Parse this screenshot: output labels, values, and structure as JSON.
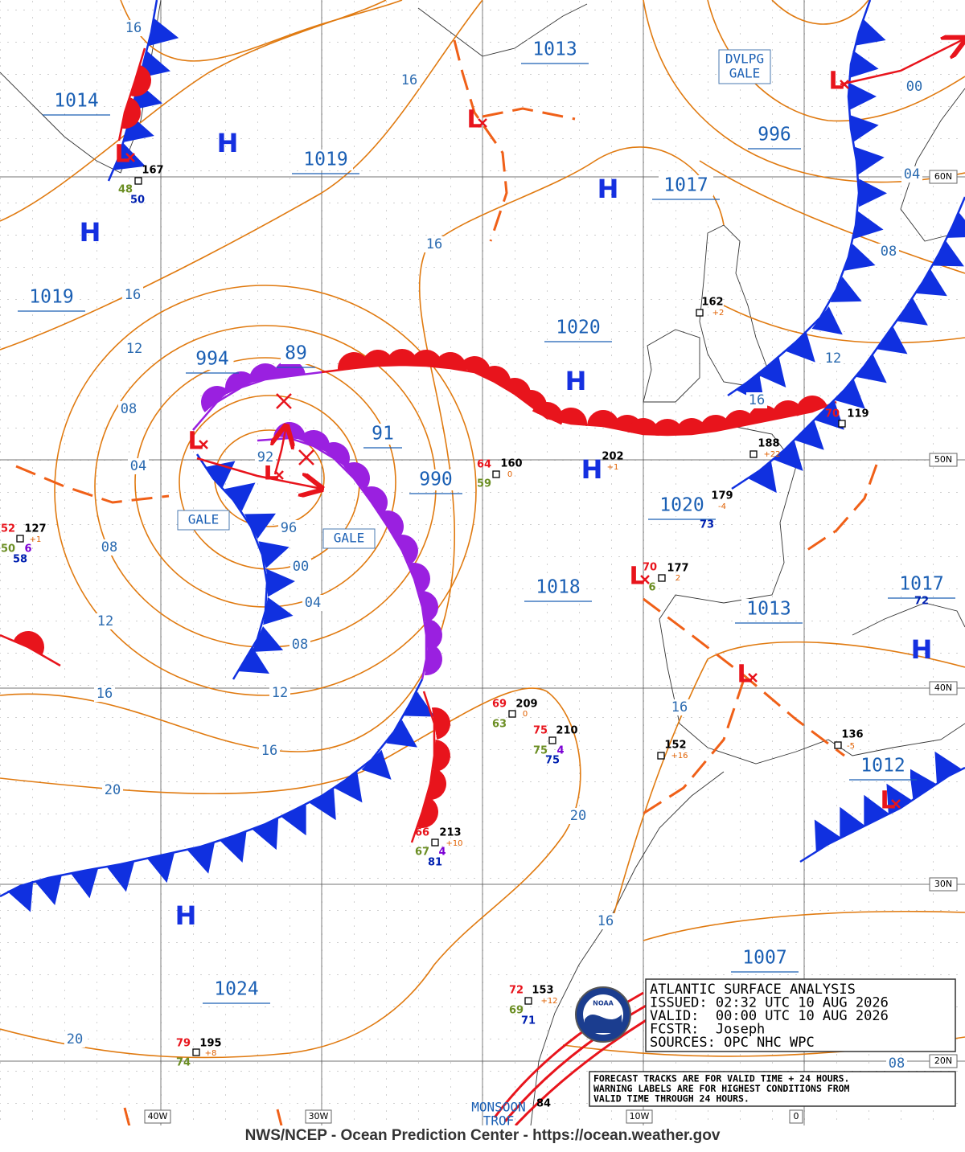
{
  "pressure_labels": [
    "1013",
    "1014",
    "1019",
    "1017",
    "996",
    "1019",
    "1020",
    "994",
    "89",
    "91",
    "990",
    "1018",
    "1020",
    "1013",
    "1017",
    "1012",
    "1007",
    "1024"
  ],
  "highs": [
    "H",
    "H",
    "H",
    "H",
    "H",
    "H",
    "H"
  ],
  "lows": [
    "L",
    "L",
    "L",
    "L",
    "L",
    "L",
    "L",
    "L"
  ],
  "isobar_labels": [
    "16",
    "16",
    "16",
    "16",
    "12",
    "08",
    "04",
    "08",
    "12",
    "16",
    "20",
    "20",
    "96",
    "00",
    "04",
    "08",
    "12",
    "16",
    "20",
    "16",
    "16",
    "16",
    "12",
    "08",
    "04",
    "00",
    "08",
    "92"
  ],
  "warnings": [
    [
      "GALE"
    ],
    [
      "GALE"
    ],
    [
      "DVLPG",
      "GALE"
    ]
  ],
  "trough_label": [
    "MONSOON",
    "TROF"
  ],
  "stations": [
    "167",
    "48",
    "50",
    "127",
    "52",
    "50",
    "6",
    "58",
    "+1",
    "162",
    "+2",
    "119",
    "70",
    "188",
    "+22",
    "179",
    "-4",
    "160",
    "64",
    "59",
    "0",
    "202",
    "+1",
    "73",
    "177",
    "70",
    "2",
    "6",
    "209",
    "69",
    "63",
    "0",
    "210",
    "75",
    "75",
    "4",
    "75",
    "213",
    "66",
    "67",
    "4",
    "81",
    "+10",
    "152",
    "+16",
    "136",
    "-5",
    "153",
    "72",
    "69",
    "+12",
    "71",
    "195",
    "79",
    "74",
    "+8",
    "84",
    "72"
  ],
  "grid_labels": {
    "lat": [
      "60N",
      "50N",
      "40N",
      "30N",
      "20N"
    ],
    "lon": [
      "40W",
      "30W",
      "10W",
      "0"
    ]
  },
  "info_box": {
    "lines": [
      "ATLANTIC SURFACE ANALYSIS",
      "ISSUED: 02:32 UTC 10 AUG 2026",
      "VALID:  00:00 UTC 10 AUG 2026",
      "FCSTR:  Joseph",
      "SOURCES: OPC NHC WPC"
    ]
  },
  "note": {
    "lines": [
      "FORECAST TRACKS ARE FOR VALID TIME + 24 HOURS.",
      "WARNING LABELS ARE FOR HIGHEST CONDITIONS FROM",
      "VALID TIME THROUGH 24 HOURS."
    ]
  },
  "logo_text": "NOAA",
  "footer": "NWS/NCEP - Ocean Prediction Center - https://ocean.weather.gov"
}
